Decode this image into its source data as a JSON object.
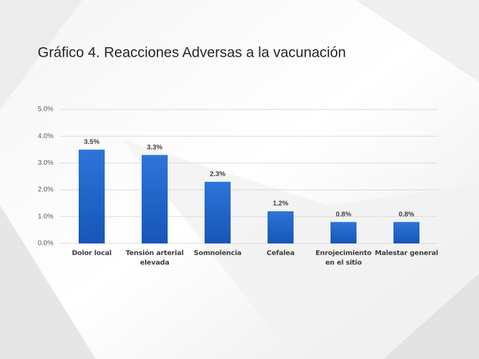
{
  "chart_data": {
    "type": "bar",
    "title": "Gráfico 4. Reacciones Adversas a la vacunación",
    "categories": [
      "Dolor local",
      "Tensión arterial elevada",
      "Somnolencia",
      "Cefalea",
      "Enrojecimiento en el sitio",
      "Malestar general"
    ],
    "values": [
      3.5,
      3.3,
      2.3,
      1.2,
      0.8,
      0.8
    ],
    "value_labels": [
      "3.5%",
      "3.3%",
      "2.3%",
      "1.2%",
      "0.8%",
      "0.8%"
    ],
    "color": "#1f63cc",
    "ylim": [
      0,
      5
    ],
    "yticks": [
      {
        "value": 0,
        "label": "0.0%"
      },
      {
        "value": 1,
        "label": "1.0%"
      },
      {
        "value": 2,
        "label": "2.0%"
      },
      {
        "value": 3,
        "label": "3.0%"
      },
      {
        "value": 4,
        "label": "4.0%"
      },
      {
        "value": 5,
        "label": "5.0%"
      }
    ],
    "grid": true
  }
}
